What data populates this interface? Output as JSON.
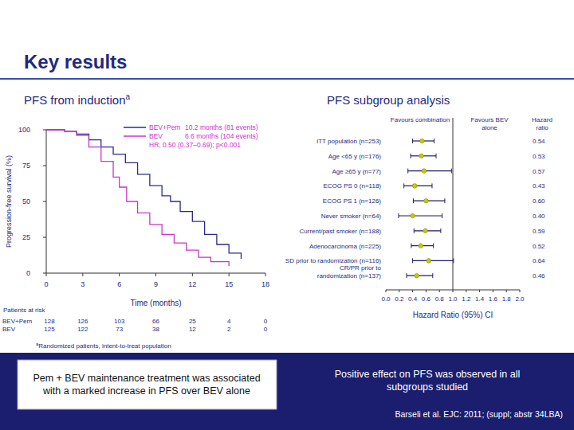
{
  "slide": {
    "title": "Key results",
    "footnote_mark": "a",
    "footnote": "Randomized patients, intent-to-treat population",
    "conclusions": [
      "Pem + BEV maintenance treatment was associated with a marked increase in PFS over BEV alone",
      "Positive effect on PFS was observed in all subgroups studied"
    ],
    "citation": "Barseli et al. EJC: 2011; (suppl; abstr 34LBA)"
  },
  "chart_data": [
    {
      "type": "line",
      "title": "PFS from induction",
      "title_note": "a",
      "xlabel": "Time (months)",
      "ylabel": "Progression-free survival (%)",
      "xlim": [
        0,
        18
      ],
      "xticks": [
        0,
        3,
        6,
        9,
        12,
        15,
        18
      ],
      "ylim": [
        0,
        100
      ],
      "yticks": [
        0,
        25,
        50,
        75,
        100
      ],
      "grid": false,
      "legend": "top-right",
      "line_style": "step",
      "annotation": "HR, 0.50 (0.37–0.69); p<0.001",
      "series": [
        {
          "name": "BEV+Pem",
          "legend_label": "10.2 months (81 events)",
          "color": "#2b2b8c",
          "x": [
            0,
            1.5,
            2.5,
            3.5,
            4.5,
            5.5,
            6.5,
            7.5,
            8.5,
            9.5,
            10.2,
            11,
            12,
            13,
            14,
            15,
            16
          ],
          "values": [
            100,
            99,
            97,
            93,
            88,
            83,
            77,
            69,
            61,
            54,
            50,
            43,
            36,
            27,
            20,
            14,
            10
          ]
        },
        {
          "name": "BEV",
          "legend_label": "6.6 months (104 events)",
          "color": "#cc33cc",
          "x": [
            0,
            1.5,
            2.5,
            3.5,
            4.5,
            5.5,
            6,
            6.6,
            7.5,
            8.5,
            9.5,
            10.5,
            11.5,
            12.5,
            13.5,
            15
          ],
          "values": [
            100,
            99,
            96,
            88,
            78,
            67,
            60,
            50,
            42,
            34,
            27,
            21,
            16,
            11,
            8,
            5
          ]
        }
      ],
      "at_risk": {
        "title": "Patients at risk",
        "x": [
          0,
          3,
          6,
          9,
          12,
          15,
          18
        ],
        "rows": [
          {
            "name": "BEV+Pem",
            "values": [
              128,
              126,
              103,
              66,
              25,
              4,
              0
            ]
          },
          {
            "name": "BEV",
            "values": [
              125,
              122,
              73,
              38,
              12,
              2,
              0
            ]
          }
        ]
      }
    },
    {
      "type": "forest",
      "title": "PFS subgroup analysis",
      "orientation": "horizontal",
      "marker": "circle",
      "color": "#c2cc00",
      "data_labels": true,
      "xlabel": "Hazard Ratio (95%) CI",
      "column_headers": {
        "left": "Favours combination",
        "right": "Favours BEV\nalone",
        "values": "Hazard\nratio"
      },
      "categories": [
        "ITT population (n=253)",
        "Age <65 y (n=176)",
        "Age ≥65 y (n=77)",
        "ECOG PS 0 (n=118)",
        "ECOG PS 1 (n=126)",
        "Never smoker (n=64)",
        "Current/past smoker (n=188)",
        "Adenocarcinoma (n=225)",
        "SD prior to randomization (n=116)",
        "CR/PR prior to\nrandomization (n=137)"
      ],
      "values": [
        0.54,
        0.53,
        0.57,
        0.43,
        0.6,
        0.4,
        0.59,
        0.52,
        0.64,
        0.46
      ],
      "value_labels": [
        "0.54",
        "0.53",
        "0.57",
        "0.43",
        "0.60",
        "0.40",
        "0.59",
        "0.52",
        "0.64",
        "0.46"
      ],
      "ci_lower": [
        0.4,
        0.37,
        0.33,
        0.27,
        0.41,
        0.19,
        0.42,
        0.38,
        0.4,
        0.31
      ],
      "ci_upper": [
        0.72,
        0.75,
        0.98,
        0.69,
        0.88,
        0.84,
        0.82,
        0.71,
        1.01,
        0.7
      ],
      "reference_line": 1,
      "xlim": [
        0,
        2
      ],
      "xticks": [
        {
          "value": 0,
          "label": "0.0"
        },
        0.2,
        0.4,
        0.6,
        0.8,
        {
          "value": 1,
          "label": "1.0"
        },
        1.2,
        1.4,
        1.6,
        1.8,
        {
          "value": 2,
          "label": "2.0"
        }
      ]
    }
  ]
}
